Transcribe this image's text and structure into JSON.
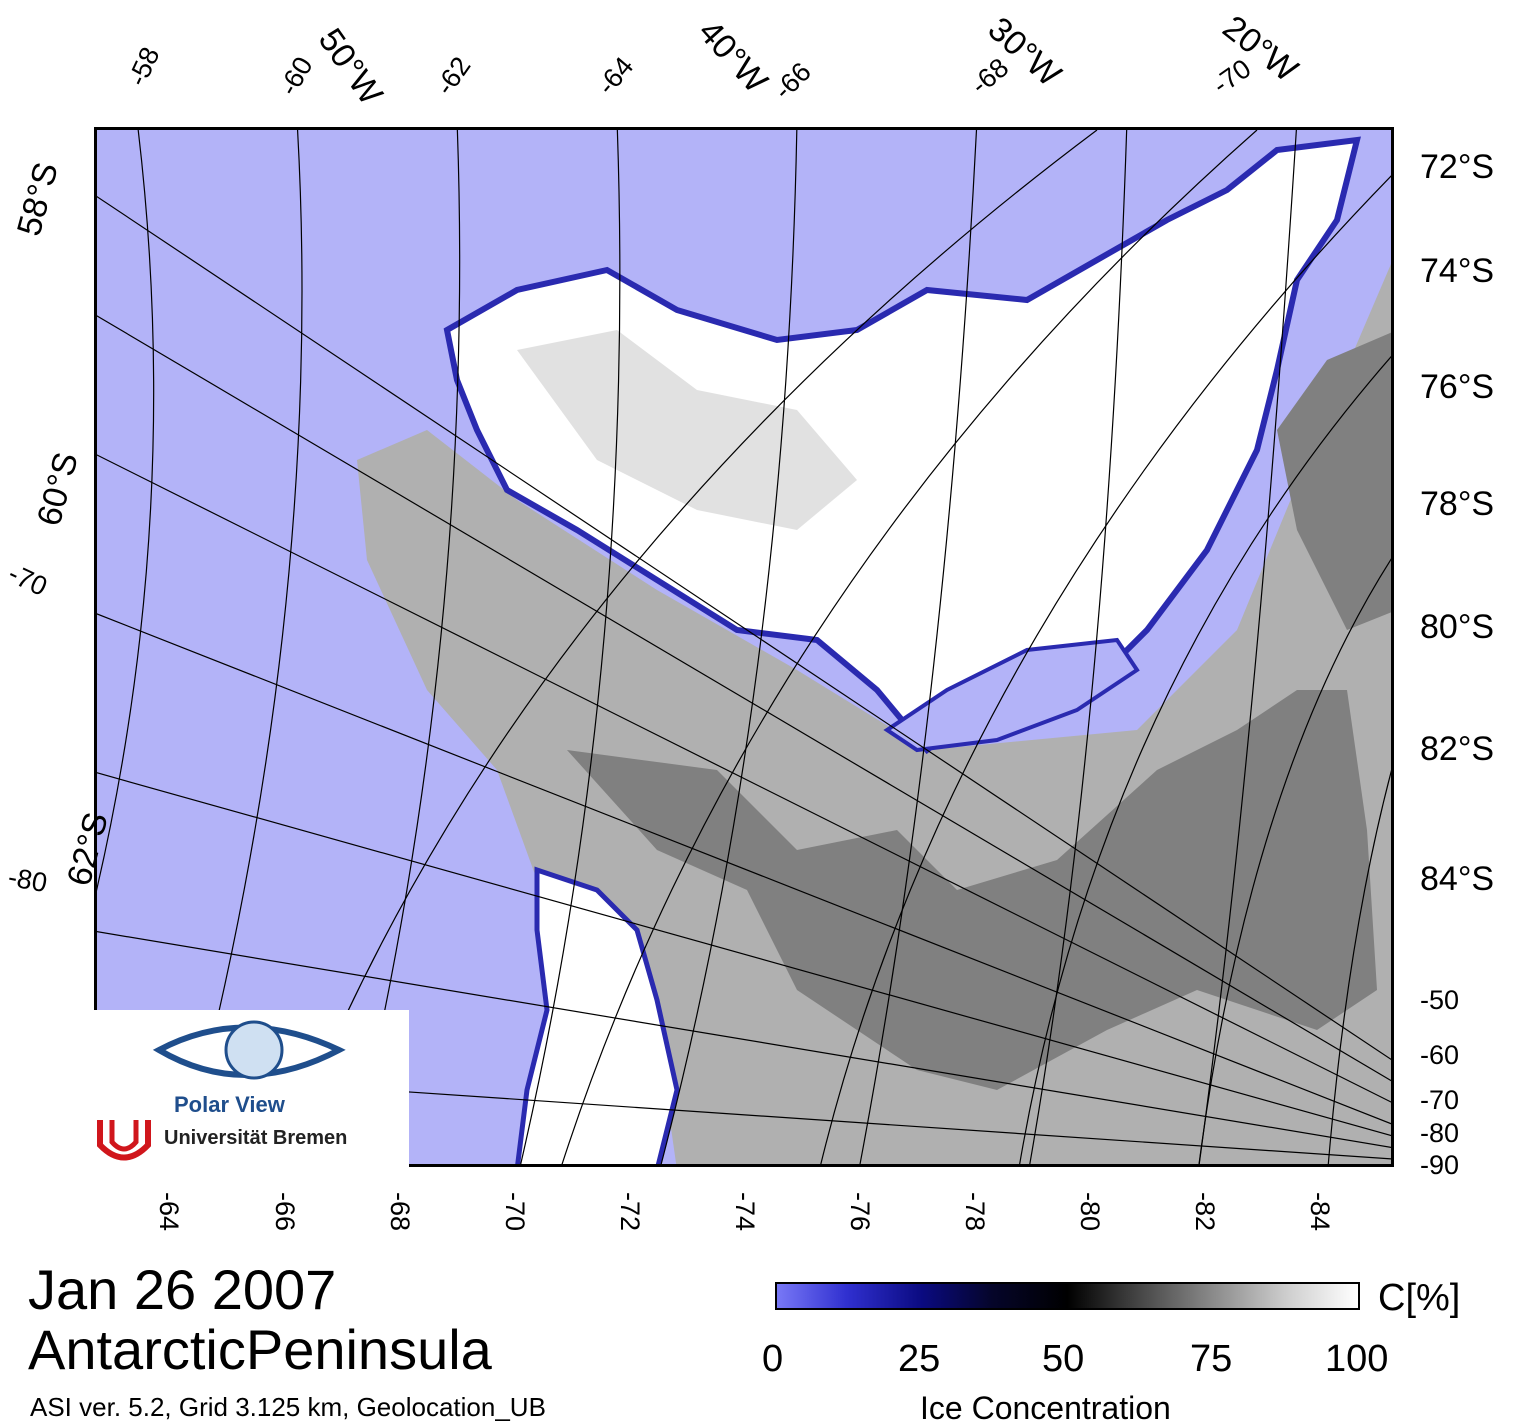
{
  "date": "Jan 26 2007",
  "region": "AntarcticPeninsula",
  "info": "ASI ver. 5.2,  Grid 3.125 km, Geolocation_UB",
  "colorbar": {
    "ticks": [
      "0",
      "25",
      "50",
      "75",
      "100"
    ],
    "unit": "C[%]",
    "label": "Ice Concentration"
  },
  "logo": {
    "title": "Polar View",
    "university": "Universität Bremen"
  },
  "axes": {
    "bottom": [
      "-64",
      "-66",
      "-68",
      "-70",
      "-72",
      "-74",
      "-76",
      "-78",
      "-80",
      "-82",
      "-84"
    ],
    "right_lat": [
      "72°S",
      "74°S",
      "76°S",
      "78°S",
      "80°S",
      "82°S",
      "84°S"
    ],
    "right_lon": [
      "-50",
      "-60",
      "-70",
      "-80",
      "-90"
    ],
    "top": [
      "-58",
      "-60",
      "-62",
      "-64",
      "-66",
      "-68",
      "-70"
    ],
    "top_meridians": [
      "50°W",
      "40°W",
      "30°W",
      "20°W"
    ],
    "left": [
      "58°S",
      "60°S",
      "-70",
      "62°S",
      "-80"
    ]
  },
  "colors": {
    "open_water": "#b3b3f8",
    "land_ice_shelf": "#b0b0b0",
    "land_dark": "#808080",
    "sea_ice": "#ffffff"
  }
}
